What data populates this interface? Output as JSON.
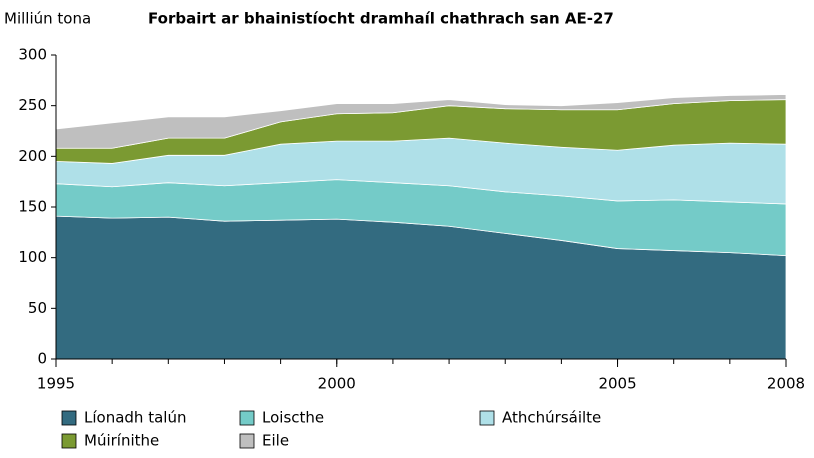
{
  "chart_data": {
    "type": "stacked_area",
    "title": "Forbairt ar bhainistíocht dramhaíl chathrach san AE-27",
    "y_label": "Milliún tona",
    "x": [
      1995,
      1996,
      1997,
      1998,
      1999,
      2000,
      2001,
      2002,
      2003,
      2004,
      2005,
      2006,
      2007,
      2008
    ],
    "series": [
      {
        "name": "Líonadh talún",
        "color": "#336b80",
        "values": [
          141,
          139,
          140,
          136,
          137,
          138,
          135,
          131,
          124,
          117,
          109,
          107,
          105,
          102
        ]
      },
      {
        "name": "Loiscthe",
        "color": "#74cbc8",
        "values": [
          32,
          31,
          34,
          35,
          37,
          39,
          39,
          40,
          41,
          44,
          47,
          50,
          50,
          51
        ]
      },
      {
        "name": "Athchúrsáilte",
        "color": "#afe0e8",
        "values": [
          22,
          23,
          27,
          30,
          38,
          38,
          41,
          47,
          48,
          48,
          50,
          54,
          58,
          59
        ]
      },
      {
        "name": "Múirínithe",
        "color": "#7b9a32",
        "values": [
          13,
          15,
          17,
          17,
          22,
          27,
          28,
          32,
          34,
          37,
          40,
          41,
          42,
          44
        ]
      },
      {
        "name": "Eile",
        "color": "#bfbfbf",
        "values": [
          19,
          25,
          21,
          21,
          11,
          10,
          9,
          6,
          4,
          4,
          7,
          6,
          5,
          5
        ]
      }
    ],
    "xlim": [
      1995,
      2008
    ],
    "xticks": [
      1995,
      2000,
      2005,
      2008
    ],
    "ylim": [
      0,
      300
    ],
    "yticks": [
      0,
      50,
      100,
      150,
      200,
      250,
      300
    ]
  }
}
